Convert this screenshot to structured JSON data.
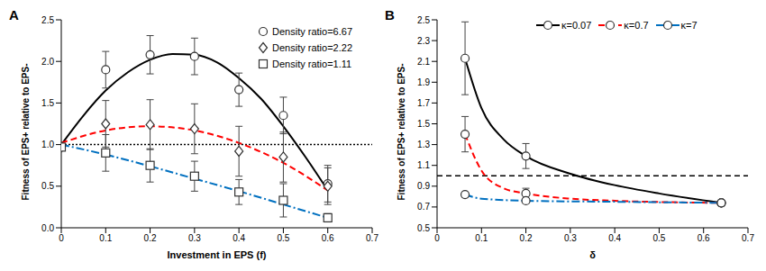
{
  "chart_data": [
    {
      "type": "scatter",
      "title": "A",
      "x_label": "Investment in EPS (f)",
      "y_label": "Fitness of EPS+ relative to EPS-",
      "xlim": [
        0,
        0.7
      ],
      "xticks": [
        0,
        0.1,
        0.2,
        0.3,
        0.4,
        0.5,
        0.6,
        0.7
      ],
      "ylim": [
        0,
        2.5
      ],
      "yticks": [
        {
          "value": 0,
          "label": "0.0"
        },
        0.5,
        {
          "value": 1,
          "label": "1.0"
        },
        1.5,
        {
          "value": 2,
          "label": "2.0"
        },
        2.5
      ],
      "hline": 1,
      "legend": "top-right",
      "grid": false,
      "series": [
        {
          "name": "Density ratio=6.67",
          "color": "#000000",
          "marker": "circle",
          "line_style": "solid",
          "x": [
            0,
            0.1,
            0.2,
            0.3,
            0.4,
            0.5,
            0.6
          ],
          "values": [
            0.97,
            1.9,
            2.08,
            2.06,
            1.66,
            1.35,
            0.53
          ],
          "errors": [
            null,
            0.22,
            0.23,
            0.22,
            0.2,
            0.22,
            0.22
          ],
          "fit_x": [
            0,
            0.05,
            0.1,
            0.15,
            0.2,
            0.25,
            0.3,
            0.35,
            0.4,
            0.45,
            0.5,
            0.55,
            0.6
          ],
          "fit_values": [
            1.0,
            1.35,
            1.65,
            1.87,
            2.02,
            2.09,
            2.08,
            1.99,
            1.8,
            1.55,
            1.22,
            0.85,
            0.45
          ]
        },
        {
          "name": "Density ratio=2.22",
          "color": "#ff0000",
          "marker": "diamond",
          "line_style": "dashed",
          "x": [
            0,
            0.1,
            0.2,
            0.3,
            0.4,
            0.5,
            0.6
          ],
          "values": [
            0.97,
            1.25,
            1.24,
            1.19,
            0.92,
            0.85,
            0.5
          ],
          "errors": [
            null,
            0.28,
            0.3,
            0.3,
            0.3,
            0.3,
            0.22
          ],
          "fit_x": [
            0,
            0.1,
            0.2,
            0.3,
            0.4,
            0.5,
            0.6
          ],
          "fit_values": [
            1.02,
            1.17,
            1.22,
            1.17,
            1.02,
            0.78,
            0.45
          ]
        },
        {
          "name": "Density ratio=1.11",
          "color": "#0070c0",
          "marker": "square",
          "line_style": "dashdot",
          "x": [
            0,
            0.1,
            0.2,
            0.3,
            0.4,
            0.5,
            0.6
          ],
          "values": [
            0.97,
            0.9,
            0.75,
            0.62,
            0.43,
            0.33,
            0.12
          ],
          "errors": [
            null,
            0.22,
            0.2,
            0.18,
            0.15,
            0.2,
            0.05
          ],
          "fit_x": [
            0,
            0.1,
            0.2,
            0.3,
            0.4,
            0.5,
            0.6
          ],
          "fit_values": [
            1.0,
            0.88,
            0.74,
            0.59,
            0.44,
            0.28,
            0.12
          ]
        }
      ]
    },
    {
      "type": "scatter",
      "title": "B",
      "x_label": "δ",
      "y_label": "Fitness of EPS+ relative to EPS-",
      "xlim": [
        0,
        0.7
      ],
      "xticks": [
        0,
        0.1,
        0.2,
        0.3,
        0.4,
        0.5,
        0.6,
        0.7
      ],
      "ylim": [
        0.5,
        2.5
      ],
      "yticks": [
        0.5,
        0.7,
        0.9,
        1.1,
        1.3,
        1.5,
        1.7,
        1.9,
        2.1,
        2.3,
        2.5
      ],
      "hline": 1,
      "legend": "top",
      "grid": false,
      "series": [
        {
          "name": "κ=0.07",
          "color": "#000000",
          "marker": "circle",
          "line_style": "solid",
          "x": [
            0.063,
            0.2,
            0.64
          ],
          "values": [
            2.13,
            1.19,
            0.74
          ],
          "errors": [
            0.35,
            0.12,
            null
          ],
          "fit_x": [
            0.063,
            0.1,
            0.15,
            0.2,
            0.3,
            0.4,
            0.5,
            0.64
          ],
          "fit_values": [
            2.13,
            1.65,
            1.35,
            1.19,
            1.02,
            0.91,
            0.83,
            0.74
          ]
        },
        {
          "name": "κ=0.7",
          "color": "#ff0000",
          "marker": "circle",
          "line_style": "dashed",
          "x": [
            0.063,
            0.2,
            0.64
          ],
          "values": [
            1.4,
            0.83,
            0.74
          ],
          "errors": [
            0.17,
            0.05,
            null
          ],
          "fit_x": [
            0.063,
            0.1,
            0.15,
            0.2,
            0.3,
            0.4,
            0.64
          ],
          "fit_values": [
            1.4,
            1.05,
            0.88,
            0.83,
            0.78,
            0.76,
            0.74
          ]
        },
        {
          "name": "κ=7",
          "color": "#0070c0",
          "marker": "circle",
          "line_style": "dashdot",
          "x": [
            0.063,
            0.2,
            0.64
          ],
          "values": [
            0.82,
            0.76,
            0.74
          ],
          "errors": [
            null,
            null,
            null
          ],
          "fit_x": [
            0.063,
            0.1,
            0.2,
            0.4,
            0.64
          ],
          "fit_values": [
            0.82,
            0.78,
            0.76,
            0.75,
            0.74
          ]
        }
      ]
    }
  ]
}
